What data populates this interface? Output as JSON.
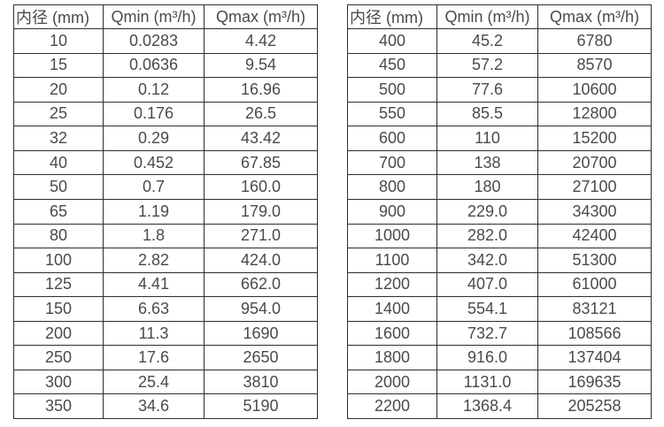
{
  "colors": {
    "background": "#ffffff",
    "border": "#2e2e2e",
    "text": "#4a4a4a"
  },
  "tables": [
    {
      "name": "small-diameters",
      "headers": [
        "内径 (mm)",
        "Qmin (m³/h)",
        "Qmax (m³/h)"
      ],
      "rows": [
        [
          "10",
          "0.0283",
          "4.42"
        ],
        [
          "15",
          "0.0636",
          "9.54"
        ],
        [
          "20",
          "0.12",
          "16.96"
        ],
        [
          "25",
          "0.176",
          "26.5"
        ],
        [
          "32",
          "0.29",
          "43.42"
        ],
        [
          "40",
          "0.452",
          "67.85"
        ],
        [
          "50",
          "0.7",
          "160.0"
        ],
        [
          "65",
          "1.19",
          "179.0"
        ],
        [
          "80",
          "1.8",
          "271.0"
        ],
        [
          "100",
          "2.82",
          "424.0"
        ],
        [
          "125",
          "4.41",
          "662.0"
        ],
        [
          "150",
          "6.63",
          "954.0"
        ],
        [
          "200",
          "11.3",
          "1690"
        ],
        [
          "250",
          "17.6",
          "2650"
        ],
        [
          "300",
          "25.4",
          "3810"
        ],
        [
          "350",
          "34.6",
          "5190"
        ]
      ]
    },
    {
      "name": "large-diameters",
      "headers": [
        "内径 (mm)",
        "Qmin (m³/h)",
        "Qmax (m³/h)"
      ],
      "rows": [
        [
          "400",
          "45.2",
          "6780"
        ],
        [
          "450",
          "57.2",
          "8570"
        ],
        [
          "500",
          "77.6",
          "10600"
        ],
        [
          "550",
          "85.5",
          "12800"
        ],
        [
          "600",
          "110",
          "15200"
        ],
        [
          "700",
          "138",
          "20700"
        ],
        [
          "800",
          "180",
          "27100"
        ],
        [
          "900",
          "229.0",
          "34300"
        ],
        [
          "1000",
          "282.0",
          "42400"
        ],
        [
          "1100",
          "342.0",
          "51300"
        ],
        [
          "1200",
          "407.0",
          "61000"
        ],
        [
          "1400",
          "554.1",
          "83121"
        ],
        [
          "1600",
          "732.7",
          "108566"
        ],
        [
          "1800",
          "916.0",
          "137404"
        ],
        [
          "2000",
          "1131.0",
          "169635"
        ],
        [
          "2200",
          "1368.4",
          "205258"
        ]
      ]
    }
  ]
}
